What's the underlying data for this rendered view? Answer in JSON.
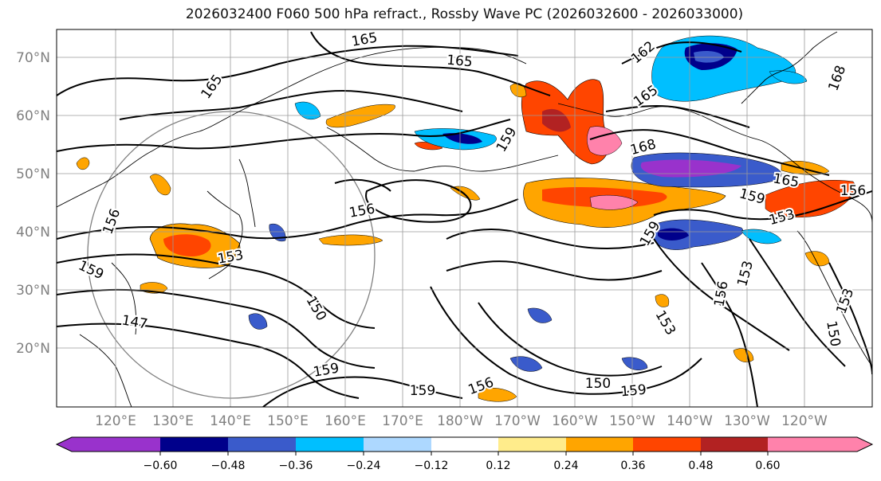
{
  "title": "2026032400 F060 500 hPa refract., Rossby Wave PC (2026032600 - 2026033000)",
  "map": {
    "lat_labels": [
      "70°N",
      "60°N",
      "50°N",
      "40°N",
      "30°N",
      "20°N"
    ],
    "lon_labels": [
      "120°E",
      "130°E",
      "140°E",
      "150°E",
      "160°E",
      "170°E",
      "180°W",
      "170°W",
      "160°W",
      "150°W",
      "140°W",
      "130°W",
      "120°W"
    ],
    "contour_labels": [
      "165",
      "165",
      "165",
      "162",
      "168",
      "165",
      "159",
      "168",
      "165",
      "156",
      "156",
      "156",
      "153",
      "159",
      "153",
      "159",
      "147",
      "150",
      "159",
      "159",
      "156",
      "150",
      "159",
      "153",
      "150",
      "159",
      "156",
      "153",
      "153"
    ]
  },
  "colorbar": {
    "tick_labels": [
      "−0.60",
      "−0.48",
      "−0.36",
      "−0.24",
      "−0.12",
      "0.12",
      "0.24",
      "0.36",
      "0.48",
      "0.60"
    ],
    "colors": [
      "#9932cc",
      "#00008b",
      "#3a5bcb",
      "#00bfff",
      "#add8ff",
      "#ffffff",
      "#ffec8b",
      "#ffa500",
      "#ff4500",
      "#b22222",
      "#ff82ab"
    ]
  },
  "palette": {
    "grid": "#9a9a9a",
    "axis_text": "#808080",
    "contour": "#000000",
    "circle": "#808080"
  }
}
